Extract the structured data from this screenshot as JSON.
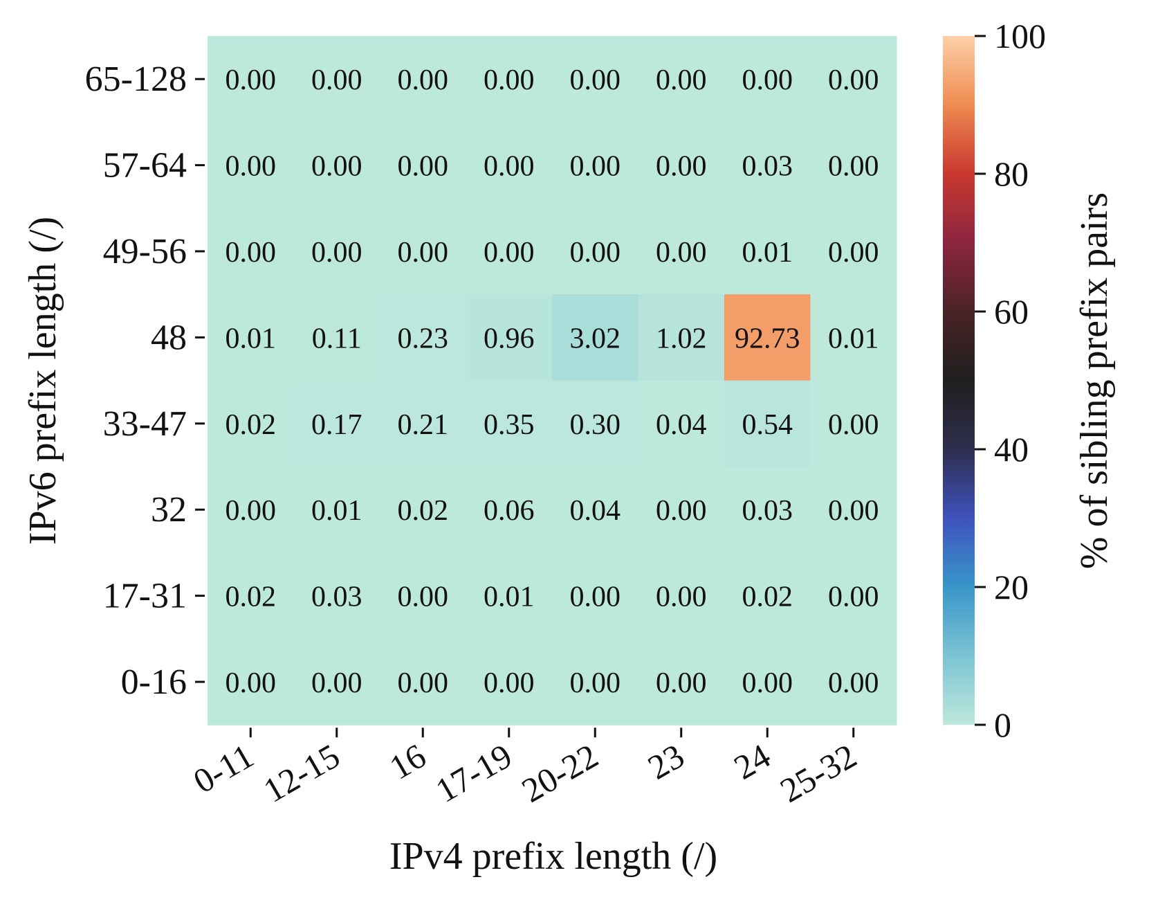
{
  "chart_data": {
    "type": "heatmap",
    "title": "",
    "xlabel": "IPv4 prefix length (/)",
    "ylabel": "IPv6 prefix length (/)",
    "x_categories": [
      "0-11",
      "12-15",
      "16",
      "17-19",
      "20-22",
      "23",
      "24",
      "25-32"
    ],
    "y_categories": [
      "65-128",
      "57-64",
      "49-56",
      "48",
      "33-47",
      "32",
      "17-31",
      "0-16"
    ],
    "values": [
      [
        0.0,
        0.0,
        0.0,
        0.0,
        0.0,
        0.0,
        0.0,
        0.0
      ],
      [
        0.0,
        0.0,
        0.0,
        0.0,
        0.0,
        0.0,
        0.03,
        0.0
      ],
      [
        0.0,
        0.0,
        0.0,
        0.0,
        0.0,
        0.0,
        0.01,
        0.0
      ],
      [
        0.01,
        0.11,
        0.23,
        0.96,
        3.02,
        1.02,
        92.73,
        0.01
      ],
      [
        0.02,
        0.17,
        0.21,
        0.35,
        0.3,
        0.04,
        0.54,
        0.0
      ],
      [
        0.0,
        0.01,
        0.02,
        0.06,
        0.04,
        0.0,
        0.03,
        0.0
      ],
      [
        0.02,
        0.03,
        0.0,
        0.01,
        0.0,
        0.0,
        0.02,
        0.0
      ],
      [
        0.0,
        0.0,
        0.0,
        0.0,
        0.0,
        0.0,
        0.0,
        0.0
      ]
    ],
    "colorbar": {
      "label": "% of sibling prefix pairs",
      "range": [
        0,
        100
      ],
      "ticks": [
        0,
        20,
        40,
        60,
        80,
        100
      ],
      "colormap": [
        "#bde8dc",
        "#3a96c9",
        "#3f52be",
        "#1f1f1f",
        "#b52c4b",
        "#e87a4a",
        "#fdd0a8"
      ]
    }
  }
}
